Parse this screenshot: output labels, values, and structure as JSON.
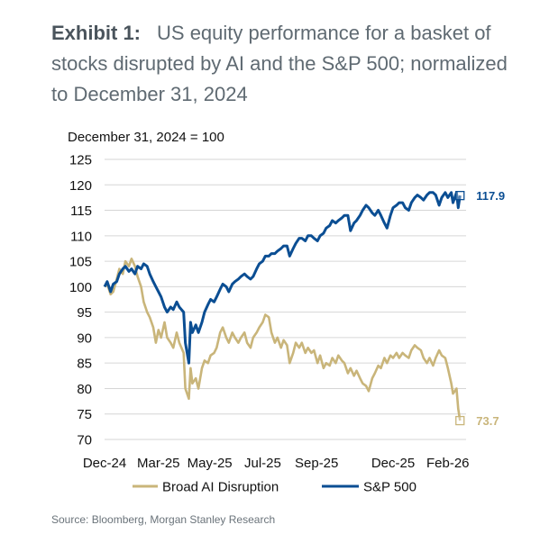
{
  "title": {
    "lead": "Exhibit 1:",
    "text": "US equity performance for a basket of stocks disrupted by AI and the S&P 500; normalized to December 31, 2024"
  },
  "source": "Source: Bloomberg, Morgan Stanley Research",
  "colors": {
    "ai": "#c9b57a",
    "sp": "#0b4e93",
    "grid": "#d6d6d6",
    "text": "#111111"
  },
  "chart_data": {
    "type": "line",
    "ylabel": "December 31, 2024 = 100",
    "ylim": [
      70,
      125
    ],
    "yticks": [
      125,
      120,
      115,
      110,
      105,
      100,
      95,
      90,
      85,
      80,
      75,
      70
    ],
    "xlim": [
      "2024-12-31",
      "2026-02-20"
    ],
    "xticks": [
      {
        "label": "Dec-24",
        "date": "2024-12-31"
      },
      {
        "label": "Mar-25",
        "date": "2025-03-03"
      },
      {
        "label": "May-25",
        "date": "2025-05-01"
      },
      {
        "label": "Jul-25",
        "date": "2025-07-01"
      },
      {
        "label": "Sep-25",
        "date": "2025-09-01"
      },
      {
        "label": "Dec-25",
        "date": "2025-11-28"
      },
      {
        "label": "Feb-26",
        "date": "2026-01-30"
      }
    ],
    "grid": "horizontal",
    "legend": "bottom",
    "series": [
      {
        "name": "Broad AI Disruption",
        "color": "#c9b57a",
        "end_label": "73.7",
        "points": [
          [
            "2024-12-31",
            100
          ],
          [
            "2025-01-03",
            100.5
          ],
          [
            "2025-01-07",
            98.5
          ],
          [
            "2025-01-10",
            99
          ],
          [
            "2025-01-14",
            101.5
          ],
          [
            "2025-01-17",
            103.5
          ],
          [
            "2025-01-21",
            102.5
          ],
          [
            "2025-01-24",
            105
          ],
          [
            "2025-01-28",
            104
          ],
          [
            "2025-01-31",
            105.5
          ],
          [
            "2025-02-04",
            104
          ],
          [
            "2025-02-07",
            102
          ],
          [
            "2025-02-11",
            100
          ],
          [
            "2025-02-14",
            97
          ],
          [
            "2025-02-18",
            95
          ],
          [
            "2025-02-21",
            94
          ],
          [
            "2025-02-25",
            92
          ],
          [
            "2025-02-28",
            89
          ],
          [
            "2025-03-03",
            91.5
          ],
          [
            "2025-03-06",
            90
          ],
          [
            "2025-03-10",
            93
          ],
          [
            "2025-03-13",
            90
          ],
          [
            "2025-03-17",
            89
          ],
          [
            "2025-03-20",
            88
          ],
          [
            "2025-03-24",
            91
          ],
          [
            "2025-03-27",
            89
          ],
          [
            "2025-04-01",
            87
          ],
          [
            "2025-04-03",
            80
          ],
          [
            "2025-04-07",
            78
          ],
          [
            "2025-04-09",
            84
          ],
          [
            "2025-04-11",
            81
          ],
          [
            "2025-04-15",
            82
          ],
          [
            "2025-04-18",
            80
          ],
          [
            "2025-04-22",
            84
          ],
          [
            "2025-04-25",
            85.5
          ],
          [
            "2025-04-29",
            85
          ],
          [
            "2025-05-02",
            86.5
          ],
          [
            "2025-05-06",
            87
          ],
          [
            "2025-05-09",
            88
          ],
          [
            "2025-05-13",
            91
          ],
          [
            "2025-05-16",
            92
          ],
          [
            "2025-05-20",
            90
          ],
          [
            "2025-05-23",
            89
          ],
          [
            "2025-05-27",
            91
          ],
          [
            "2025-05-30",
            90
          ],
          [
            "2025-06-03",
            89
          ],
          [
            "2025-06-06",
            90
          ],
          [
            "2025-06-10",
            91
          ],
          [
            "2025-06-13",
            89
          ],
          [
            "2025-06-17",
            88
          ],
          [
            "2025-06-20",
            90
          ],
          [
            "2025-06-24",
            91
          ],
          [
            "2025-06-27",
            92
          ],
          [
            "2025-07-01",
            93
          ],
          [
            "2025-07-04",
            94.5
          ],
          [
            "2025-07-08",
            94
          ],
          [
            "2025-07-11",
            91
          ],
          [
            "2025-07-15",
            89
          ],
          [
            "2025-07-18",
            90
          ],
          [
            "2025-07-22",
            88
          ],
          [
            "2025-07-25",
            89.5
          ],
          [
            "2025-07-29",
            88.5
          ],
          [
            "2025-08-01",
            85
          ],
          [
            "2025-08-05",
            87
          ],
          [
            "2025-08-08",
            89
          ],
          [
            "2025-08-12",
            88
          ],
          [
            "2025-08-15",
            89
          ],
          [
            "2025-08-19",
            87
          ],
          [
            "2025-08-22",
            88
          ],
          [
            "2025-08-26",
            87
          ],
          [
            "2025-08-29",
            87.5
          ],
          [
            "2025-09-02",
            85
          ],
          [
            "2025-09-05",
            86.5
          ],
          [
            "2025-09-09",
            84
          ],
          [
            "2025-09-12",
            85
          ],
          [
            "2025-09-16",
            84.5
          ],
          [
            "2025-09-19",
            86
          ],
          [
            "2025-09-23",
            85
          ],
          [
            "2025-09-26",
            86.5
          ],
          [
            "2025-09-30",
            85.5
          ],
          [
            "2025-10-03",
            85
          ],
          [
            "2025-10-07",
            83
          ],
          [
            "2025-10-10",
            84
          ],
          [
            "2025-10-14",
            82.5
          ],
          [
            "2025-10-17",
            83.5
          ],
          [
            "2025-10-21",
            82
          ],
          [
            "2025-10-24",
            81
          ],
          [
            "2025-10-28",
            80.5
          ],
          [
            "2025-10-31",
            79.5
          ],
          [
            "2025-11-04",
            82
          ],
          [
            "2025-11-07",
            83
          ],
          [
            "2025-11-11",
            84.5
          ],
          [
            "2025-11-14",
            84
          ],
          [
            "2025-11-18",
            86
          ],
          [
            "2025-11-21",
            85
          ],
          [
            "2025-11-25",
            86.5
          ],
          [
            "2025-11-28",
            86
          ],
          [
            "2025-12-02",
            87
          ],
          [
            "2025-12-05",
            86
          ],
          [
            "2025-12-09",
            87
          ],
          [
            "2025-12-12",
            86.5
          ],
          [
            "2025-12-16",
            86
          ],
          [
            "2025-12-19",
            87.5
          ],
          [
            "2025-12-23",
            88.5
          ],
          [
            "2025-12-26",
            88
          ],
          [
            "2025-12-30",
            87.5
          ],
          [
            "2026-01-02",
            86
          ],
          [
            "2026-01-06",
            85
          ],
          [
            "2026-01-09",
            86
          ],
          [
            "2026-01-13",
            84.5
          ],
          [
            "2026-01-16",
            86
          ],
          [
            "2026-01-20",
            87.5
          ],
          [
            "2026-01-23",
            86.5
          ],
          [
            "2026-01-27",
            86
          ],
          [
            "2026-01-30",
            84
          ],
          [
            "2026-02-03",
            81
          ],
          [
            "2026-02-05",
            79
          ],
          [
            "2026-02-09",
            80
          ],
          [
            "2026-02-11",
            76
          ],
          [
            "2026-02-13",
            73.7
          ]
        ]
      },
      {
        "name": "S&P 500",
        "color": "#0b4e93",
        "end_label": "117.9",
        "points": [
          [
            "2024-12-31",
            100
          ],
          [
            "2025-01-03",
            101
          ],
          [
            "2025-01-07",
            99
          ],
          [
            "2025-01-10",
            100.5
          ],
          [
            "2025-01-14",
            101
          ],
          [
            "2025-01-17",
            102.5
          ],
          [
            "2025-01-21",
            103.5
          ],
          [
            "2025-01-24",
            104
          ],
          [
            "2025-01-28",
            103
          ],
          [
            "2025-01-31",
            103.5
          ],
          [
            "2025-02-04",
            102.5
          ],
          [
            "2025-02-07",
            104
          ],
          [
            "2025-02-11",
            103.5
          ],
          [
            "2025-02-14",
            104.5
          ],
          [
            "2025-02-18",
            104
          ],
          [
            "2025-02-21",
            102.5
          ],
          [
            "2025-02-25",
            101
          ],
          [
            "2025-02-28",
            100
          ],
          [
            "2025-03-03",
            99
          ],
          [
            "2025-03-06",
            98
          ],
          [
            "2025-03-10",
            96
          ],
          [
            "2025-03-13",
            95
          ],
          [
            "2025-03-17",
            96
          ],
          [
            "2025-03-20",
            95.5
          ],
          [
            "2025-03-24",
            97
          ],
          [
            "2025-03-27",
            96
          ],
          [
            "2025-04-01",
            95
          ],
          [
            "2025-04-03",
            89
          ],
          [
            "2025-04-07",
            85
          ],
          [
            "2025-04-09",
            93
          ],
          [
            "2025-04-11",
            91
          ],
          [
            "2025-04-15",
            92.5
          ],
          [
            "2025-04-18",
            91
          ],
          [
            "2025-04-22",
            93
          ],
          [
            "2025-04-25",
            95
          ],
          [
            "2025-04-29",
            96.5
          ],
          [
            "2025-05-02",
            97.5
          ],
          [
            "2025-05-06",
            97
          ],
          [
            "2025-05-09",
            98
          ],
          [
            "2025-05-13",
            99.5
          ],
          [
            "2025-05-16",
            100.5
          ],
          [
            "2025-05-20",
            100
          ],
          [
            "2025-05-23",
            99
          ],
          [
            "2025-05-27",
            100.5
          ],
          [
            "2025-05-30",
            101
          ],
          [
            "2025-06-03",
            101.5
          ],
          [
            "2025-06-06",
            102
          ],
          [
            "2025-06-10",
            102.5
          ],
          [
            "2025-06-13",
            102
          ],
          [
            "2025-06-17",
            101.5
          ],
          [
            "2025-06-20",
            102
          ],
          [
            "2025-06-24",
            103.5
          ],
          [
            "2025-06-27",
            104.5
          ],
          [
            "2025-07-01",
            105
          ],
          [
            "2025-07-04",
            106
          ],
          [
            "2025-07-08",
            106
          ],
          [
            "2025-07-11",
            106.5
          ],
          [
            "2025-07-15",
            106.5
          ],
          [
            "2025-07-18",
            107
          ],
          [
            "2025-07-22",
            107.5
          ],
          [
            "2025-07-25",
            108
          ],
          [
            "2025-07-29",
            108
          ],
          [
            "2025-08-01",
            106
          ],
          [
            "2025-08-05",
            107.5
          ],
          [
            "2025-08-08",
            108.5
          ],
          [
            "2025-08-12",
            109.5
          ],
          [
            "2025-08-15",
            109.5
          ],
          [
            "2025-08-19",
            109
          ],
          [
            "2025-08-22",
            110
          ],
          [
            "2025-08-26",
            110
          ],
          [
            "2025-08-29",
            109.5
          ],
          [
            "2025-09-02",
            109
          ],
          [
            "2025-09-05",
            110
          ],
          [
            "2025-09-09",
            110.5
          ],
          [
            "2025-09-12",
            111.5
          ],
          [
            "2025-09-16",
            112
          ],
          [
            "2025-09-19",
            113
          ],
          [
            "2025-09-23",
            112.5
          ],
          [
            "2025-09-26",
            113
          ],
          [
            "2025-09-30",
            113.5
          ],
          [
            "2025-10-03",
            114
          ],
          [
            "2025-10-07",
            114
          ],
          [
            "2025-10-10",
            111
          ],
          [
            "2025-10-14",
            112.5
          ],
          [
            "2025-10-17",
            113
          ],
          [
            "2025-10-21",
            114
          ],
          [
            "2025-10-24",
            115
          ],
          [
            "2025-10-28",
            116
          ],
          [
            "2025-10-31",
            115.5
          ],
          [
            "2025-11-04",
            114.5
          ],
          [
            "2025-11-07",
            114
          ],
          [
            "2025-11-11",
            115
          ],
          [
            "2025-11-14",
            114
          ],
          [
            "2025-11-18",
            112.5
          ],
          [
            "2025-11-21",
            111.5
          ],
          [
            "2025-11-25",
            114
          ],
          [
            "2025-11-28",
            115.5
          ],
          [
            "2025-12-02",
            116
          ],
          [
            "2025-12-05",
            116.5
          ],
          [
            "2025-12-09",
            116.5
          ],
          [
            "2025-12-12",
            115.5
          ],
          [
            "2025-12-16",
            115
          ],
          [
            "2025-12-19",
            116.5
          ],
          [
            "2025-12-23",
            117.5
          ],
          [
            "2025-12-26",
            118
          ],
          [
            "2025-12-30",
            117.5
          ],
          [
            "2026-01-02",
            117
          ],
          [
            "2026-01-06",
            118
          ],
          [
            "2026-01-09",
            118.5
          ],
          [
            "2026-01-13",
            118.5
          ],
          [
            "2026-01-16",
            118
          ],
          [
            "2026-01-20",
            116
          ],
          [
            "2026-01-23",
            117.5
          ],
          [
            "2026-01-27",
            118.5
          ],
          [
            "2026-01-30",
            117.5
          ],
          [
            "2026-02-03",
            118.5
          ],
          [
            "2026-02-05",
            116.5
          ],
          [
            "2026-02-09",
            118.5
          ],
          [
            "2026-02-11",
            115.5
          ],
          [
            "2026-02-13",
            117.9
          ]
        ]
      }
    ]
  }
}
